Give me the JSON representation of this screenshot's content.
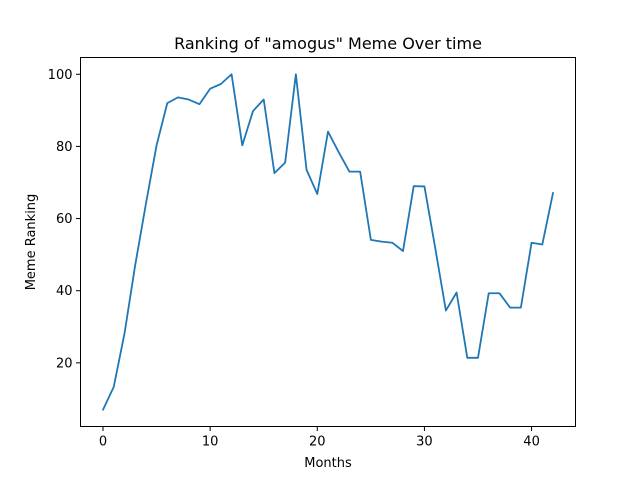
{
  "chart_data": {
    "type": "line",
    "title": "Ranking of \"amogus\" Meme Over time",
    "xlabel": "Months",
    "ylabel": "Meme Ranking",
    "xlim": [
      -2.1,
      44.1
    ],
    "ylim": [
      2.35,
      104.65
    ],
    "xticks": [
      0,
      10,
      20,
      30,
      40
    ],
    "yticks": [
      20,
      40,
      60,
      80,
      100
    ],
    "grid": false,
    "legend": "none",
    "series": [
      {
        "color": "#1f77b4",
        "x": [
          0,
          1,
          2,
          3,
          4,
          5,
          6,
          7,
          8,
          9,
          10,
          11,
          12,
          13,
          14,
          15,
          16,
          17,
          18,
          19,
          20,
          21,
          22,
          23,
          24,
          25,
          26,
          27,
          28,
          29,
          30,
          31,
          32,
          33,
          34,
          35,
          36,
          37,
          38,
          39,
          40,
          41,
          42
        ],
        "y": [
          7,
          13.3,
          28,
          47,
          64,
          80.3,
          92,
          93.6,
          93,
          91.7,
          96,
          97.3,
          100,
          80.3,
          89.8,
          93,
          72.6,
          75.5,
          100,
          73.5,
          66.8,
          84.1,
          78.4,
          73,
          73,
          54.1,
          53.6,
          53.3,
          51,
          69,
          68.9,
          52,
          34.5,
          39.5,
          21.4,
          21.4,
          39.3,
          39.3,
          35.3,
          35.3,
          53.3,
          52.8,
          67.1
        ]
      }
    ]
  }
}
